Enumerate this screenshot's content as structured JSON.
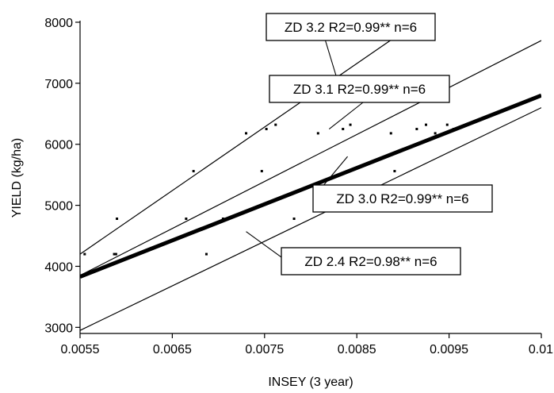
{
  "chart_data": {
    "type": "scatter",
    "title": "",
    "xlabel": "INSEY (3 year)",
    "ylabel": "YIELD (kg/ha)",
    "xlim": [
      0.0055,
      0.0105
    ],
    "ylim": [
      2900,
      8000
    ],
    "grid": false,
    "x_ticks": [
      0.0055,
      0.0065,
      0.0075,
      0.0085,
      0.0095,
      0.0105
    ],
    "x_tick_labels": [
      "0.0055",
      "0.0065",
      "0.0075",
      "0.0085",
      "0.0095",
      "0.01"
    ],
    "y_ticks": [
      3000,
      4000,
      5000,
      6000,
      7000,
      8000
    ],
    "y_tick_labels": [
      "3000",
      "4000",
      "5000",
      "6000",
      "7000",
      "8000"
    ],
    "points": [
      {
        "x": 0.00555,
        "y": 4200
      },
      {
        "x": 0.00587,
        "y": 4200
      },
      {
        "x": 0.00589,
        "y": 4200
      },
      {
        "x": 0.0059,
        "y": 4780
      },
      {
        "x": 0.00665,
        "y": 4780
      },
      {
        "x": 0.00673,
        "y": 5560
      },
      {
        "x": 0.00687,
        "y": 4200
      },
      {
        "x": 0.00705,
        "y": 4780
      },
      {
        "x": 0.0073,
        "y": 6180
      },
      {
        "x": 0.00747,
        "y": 5560
      },
      {
        "x": 0.00752,
        "y": 6250
      },
      {
        "x": 0.00762,
        "y": 6320
      },
      {
        "x": 0.00782,
        "y": 4780
      },
      {
        "x": 0.00808,
        "y": 6180
      },
      {
        "x": 0.00835,
        "y": 6250
      },
      {
        "x": 0.00843,
        "y": 6320
      },
      {
        "x": 0.00887,
        "y": 6180
      },
      {
        "x": 0.00891,
        "y": 5560
      },
      {
        "x": 0.00915,
        "y": 6250
      },
      {
        "x": 0.00925,
        "y": 6320
      },
      {
        "x": 0.00935,
        "y": 6180
      },
      {
        "x": 0.00948,
        "y": 6320
      },
      {
        "x": 0.00955,
        "y": 6250
      }
    ],
    "series": [
      {
        "name": "ZD 3.2 R2=0.99** n=6",
        "x": [
          0.0055,
          0.00915
        ],
        "y": [
          4200,
          8000
        ],
        "bold": false
      },
      {
        "name": "ZD 3.1 R2=0.99** n=6",
        "x": [
          0.0055,
          0.0105
        ],
        "y": [
          3850,
          7700
        ],
        "bold": false
      },
      {
        "name": "ZD 3.0 R2=0.99** n=6",
        "x": [
          0.0055,
          0.0105
        ],
        "y": [
          3830,
          6800
        ],
        "bold": true
      },
      {
        "name": "ZD 2.4 R2=0.98** n=6",
        "x": [
          0.0055,
          0.0105
        ],
        "y": [
          2950,
          6600
        ],
        "bold": false
      }
    ],
    "annotations": [
      {
        "text": "ZD 3.2 R2=0.99** n=6",
        "series": 0,
        "anchor_x": 0.0083,
        "anchor_y": 7000
      },
      {
        "text": "ZD 3.1 R2=0.99** n=6",
        "series": 1,
        "anchor_x": 0.0082,
        "anchor_y": 6250
      },
      {
        "text": "ZD 3.0 R2=0.99** n=6",
        "series": 2,
        "anchor_x": 0.0084,
        "anchor_y": 5800
      },
      {
        "text": "ZD 2.4 R2=0.98** n=6",
        "series": 3,
        "anchor_x": 0.0073,
        "anchor_y": 4570
      }
    ]
  }
}
